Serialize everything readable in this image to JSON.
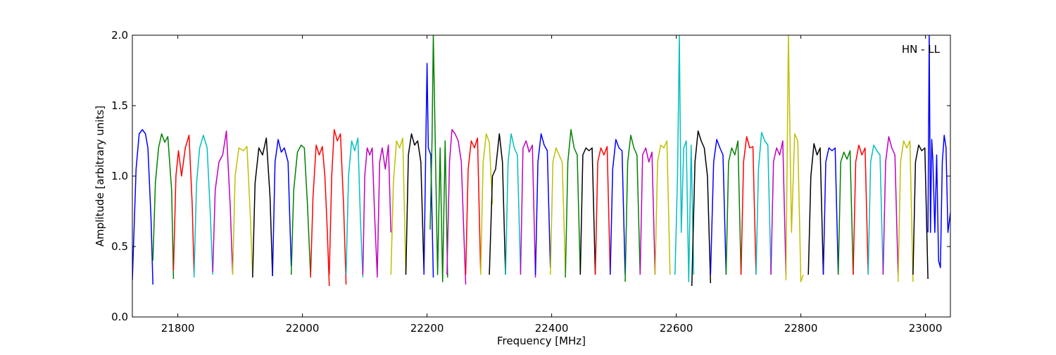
{
  "chart_data": {
    "type": "line",
    "title": "",
    "annotation": "HN - LL",
    "xlabel": "Frequency [MHz]",
    "ylabel": "Amplitude [arbitrary units]",
    "xlim": [
      21727,
      23040
    ],
    "ylim": [
      0.0,
      2.0
    ],
    "xticks": [
      21800,
      22000,
      22200,
      22400,
      22600,
      22800,
      23000
    ],
    "xtick_labels": [
      "21800",
      "22000",
      "22200",
      "22400",
      "22600",
      "22800",
      "23000"
    ],
    "yticks": [
      0.0,
      0.5,
      1.0,
      1.5,
      2.0
    ],
    "ytick_labels": [
      "0.0",
      "0.5",
      "1.0",
      "1.5",
      "2.0"
    ],
    "grid": false,
    "legend": false,
    "colors": [
      "#0000ff",
      "#008000",
      "#ff0000",
      "#00bfbf",
      "#bf00bf",
      "#bfbf00",
      "#000000"
    ],
    "series": [
      {
        "color": "#0000ff",
        "x": [
          21727,
          21733,
          21738,
          21743,
          21748,
          21752,
          21757,
          21760
        ],
        "y": [
          0.26,
          1.05,
          1.3,
          1.33,
          1.3,
          1.2,
          0.7,
          0.23
        ]
      },
      {
        "color": "#008000",
        "x": [
          21760,
          21764,
          21769,
          21774,
          21779,
          21784,
          21790,
          21793
        ],
        "y": [
          0.4,
          0.95,
          1.2,
          1.3,
          1.24,
          1.28,
          0.9,
          0.27
        ]
      },
      {
        "color": "#ff0000",
        "x": [
          21793,
          21797,
          21801,
          21806,
          21812,
          21818,
          21823,
          21826
        ],
        "y": [
          0.33,
          1.0,
          1.18,
          1.0,
          1.2,
          1.29,
          0.8,
          0.31
        ]
      },
      {
        "color": "#00bfbf",
        "x": [
          21826,
          21830,
          21835,
          21841,
          21847,
          21852,
          21856
        ],
        "y": [
          0.28,
          0.95,
          1.2,
          1.29,
          1.2,
          0.75,
          0.3
        ]
      },
      {
        "color": "#bf00bf",
        "x": [
          21856,
          21860,
          21866,
          21872,
          21878,
          21884,
          21888
        ],
        "y": [
          0.32,
          0.9,
          1.1,
          1.15,
          1.32,
          0.8,
          0.31
        ]
      },
      {
        "color": "#bfbf00",
        "x": [
          21888,
          21892,
          21898,
          21905,
          21911,
          21916,
          21920
        ],
        "y": [
          0.3,
          1.0,
          1.2,
          1.18,
          1.21,
          0.75,
          0.3
        ]
      },
      {
        "color": "#000000",
        "x": [
          21920,
          21924,
          21930,
          21936,
          21942,
          21948,
          21952
        ],
        "y": [
          0.28,
          0.95,
          1.2,
          1.15,
          1.27,
          0.85,
          0.29
        ]
      },
      {
        "color": "#0000ff",
        "x": [
          21952,
          21956,
          21961,
          21966,
          21971,
          21977,
          21982
        ],
        "y": [
          0.29,
          1.1,
          1.26,
          1.17,
          1.2,
          1.1,
          0.36
        ]
      },
      {
        "color": "#008000",
        "x": [
          21982,
          21986,
          21992,
          21998,
          22003,
          22008,
          22013
        ],
        "y": [
          0.3,
          0.9,
          1.17,
          1.22,
          1.2,
          0.8,
          0.3
        ]
      },
      {
        "color": "#ff0000",
        "x": [
          22013,
          22017,
          22022,
          22027,
          22032,
          22036,
          22040,
          22043
        ],
        "y": [
          0.28,
          0.85,
          1.22,
          1.15,
          1.21,
          1.0,
          0.6,
          0.22
        ]
      },
      {
        "color": "#ff0000",
        "x": [
          22043,
          22047,
          22051,
          22056,
          22061,
          22066,
          22070
        ],
        "y": [
          0.3,
          1.0,
          1.33,
          1.25,
          1.3,
          0.8,
          0.23
        ]
      },
      {
        "color": "#00bfbf",
        "x": [
          22070,
          22074,
          22079,
          22084,
          22089,
          22093,
          22097
        ],
        "y": [
          0.3,
          1.0,
          1.25,
          1.18,
          1.27,
          0.7,
          0.28
        ]
      },
      {
        "color": "#bf00bf",
        "x": [
          22097,
          22100,
          22104,
          22108,
          22112,
          22116,
          22120
        ],
        "y": [
          0.3,
          1.0,
          1.2,
          1.15,
          1.2,
          0.7,
          0.3
        ]
      },
      {
        "color": "#bf00bf",
        "x": [
          22120,
          22124,
          22128,
          22133,
          22138,
          22142
        ],
        "y": [
          0.28,
          1.1,
          1.2,
          1.05,
          1.22,
          0.6
        ]
      },
      {
        "color": "#bfbf00",
        "x": [
          22142,
          22146,
          22151,
          22156,
          22161,
          22166
        ],
        "y": [
          0.3,
          0.95,
          1.25,
          1.2,
          1.27,
          0.3
        ]
      },
      {
        "color": "#000000",
        "x": [
          22166,
          22170,
          22175,
          22180,
          22185,
          22190,
          22195
        ],
        "y": [
          0.3,
          1.15,
          1.3,
          1.22,
          1.25,
          1.1,
          0.32
        ]
      },
      {
        "color": "#0000ff",
        "x": [
          22195,
          22198,
          22200,
          22202,
          22206,
          22210
        ],
        "y": [
          0.3,
          1.2,
          1.8,
          1.2,
          1.15,
          0.28
        ]
      },
      {
        "color": "#008000",
        "x": [
          22205,
          22208,
          22210,
          22213,
          22217,
          22221,
          22225,
          22229,
          22233
        ],
        "y": [
          0.62,
          1.26,
          2.0,
          1.28,
          0.3,
          1.2,
          0.25,
          1.25,
          0.28
        ]
      },
      {
        "color": "#bf00bf",
        "x": [
          22232,
          22236,
          22240,
          22245,
          22250,
          22255,
          22259,
          22262
        ],
        "y": [
          0.3,
          1.1,
          1.33,
          1.3,
          1.25,
          1.1,
          0.6,
          0.23
        ]
      },
      {
        "color": "#ff0000",
        "x": [
          22262,
          22266,
          22271,
          22276,
          22281,
          22286
        ],
        "y": [
          0.3,
          1.05,
          1.25,
          1.2,
          1.27,
          0.32
        ]
      },
      {
        "color": "#bfbf00",
        "x": [
          22286,
          22290,
          22295,
          22300,
          22305
        ],
        "y": [
          0.3,
          1.1,
          1.3,
          1.24,
          0.8
        ]
      },
      {
        "color": "#000000",
        "x": [
          22300,
          22305,
          22310,
          22316,
          22321,
          22326
        ],
        "y": [
          0.3,
          1.0,
          1.05,
          1.3,
          1.1,
          0.3
        ]
      },
      {
        "color": "#00bfbf",
        "x": [
          22326,
          22330,
          22335,
          22340,
          22345,
          22350
        ],
        "y": [
          0.3,
          1.1,
          1.3,
          1.2,
          1.15,
          0.32
        ]
      },
      {
        "color": "#bf00bf",
        "x": [
          22350,
          22354,
          22359,
          22364,
          22369,
          22374
        ],
        "y": [
          0.3,
          1.2,
          1.25,
          1.17,
          1.22,
          0.28
        ]
      },
      {
        "color": "#0000ff",
        "x": [
          22374,
          22378,
          22383,
          22388,
          22393,
          22398
        ],
        "y": [
          0.3,
          1.1,
          1.3,
          1.22,
          1.18,
          0.35
        ]
      },
      {
        "color": "#bfbf00",
        "x": [
          22398,
          22402,
          22407,
          22412,
          22417,
          22422
        ],
        "y": [
          0.3,
          1.1,
          1.2,
          1.15,
          1.1,
          0.32
        ]
      },
      {
        "color": "#008000",
        "x": [
          22422,
          22426,
          22431,
          22436,
          22441,
          22446
        ],
        "y": [
          0.28,
          1.1,
          1.33,
          1.2,
          1.15,
          0.3
        ]
      },
      {
        "color": "#000000",
        "x": [
          22446,
          22450,
          22455,
          22460,
          22465,
          22470
        ],
        "y": [
          0.3,
          1.15,
          1.2,
          1.18,
          1.2,
          0.3
        ]
      },
      {
        "color": "#ff0000",
        "x": [
          22470,
          22474,
          22479,
          22484,
          22489,
          22494
        ],
        "y": [
          0.3,
          1.1,
          1.2,
          1.15,
          1.21,
          0.3
        ]
      },
      {
        "color": "#0000ff",
        "x": [
          22494,
          22498,
          22503,
          22508,
          22513,
          22518
        ],
        "y": [
          0.3,
          1.05,
          1.26,
          1.2,
          1.18,
          0.3
        ]
      },
      {
        "color": "#008000",
        "x": [
          22518,
          22522,
          22527,
          22532,
          22537,
          22542
        ],
        "y": [
          0.25,
          1.1,
          1.29,
          1.2,
          1.15,
          0.3
        ]
      },
      {
        "color": "#bf00bf",
        "x": [
          22542,
          22546,
          22551,
          22556,
          22561,
          22566
        ],
        "y": [
          0.3,
          1.15,
          1.2,
          1.1,
          1.17,
          0.3
        ]
      },
      {
        "color": "#bfbf00",
        "x": [
          22566,
          22570,
          22575,
          22580,
          22585,
          22590
        ],
        "y": [
          0.3,
          1.1,
          1.22,
          1.2,
          1.25,
          0.3
        ]
      },
      {
        "color": "#00bfbf",
        "x": [
          22598,
          22602,
          22605,
          22608,
          22612,
          22616,
          22620,
          22624,
          22628
        ],
        "y": [
          0.3,
          1.0,
          2.0,
          0.6,
          1.2,
          1.25,
          0.25,
          1.22,
          0.3
        ]
      },
      {
        "color": "#000000",
        "x": [
          22625,
          22630,
          22635,
          22640,
          22645,
          22650,
          22655
        ],
        "y": [
          0.22,
          1.1,
          1.32,
          1.25,
          1.2,
          1.0,
          0.24
        ]
      },
      {
        "color": "#0000ff",
        "x": [
          22655,
          22660,
          22665,
          22670,
          22675,
          22680
        ],
        "y": [
          0.3,
          1.1,
          1.26,
          1.2,
          1.15,
          0.3
        ]
      },
      {
        "color": "#008000",
        "x": [
          22680,
          22684,
          22689,
          22694,
          22699,
          22704
        ],
        "y": [
          0.3,
          1.1,
          1.2,
          1.15,
          1.25,
          0.3
        ]
      },
      {
        "color": "#ff0000",
        "x": [
          22704,
          22708,
          22713,
          22718,
          22723,
          22728
        ],
        "y": [
          0.3,
          1.1,
          1.28,
          1.2,
          1.21,
          0.3
        ]
      },
      {
        "color": "#00bfbf",
        "x": [
          22728,
          22732,
          22737,
          22742,
          22747,
          22752
        ],
        "y": [
          0.3,
          1.05,
          1.31,
          1.25,
          1.22,
          0.3
        ]
      },
      {
        "color": "#bf00bf",
        "x": [
          22752,
          22756,
          22761,
          22766,
          22771,
          22776
        ],
        "y": [
          0.3,
          1.1,
          1.2,
          1.15,
          1.25,
          0.3
        ]
      },
      {
        "color": "#bfbf00",
        "x": [
          22776,
          22780,
          22785,
          22790,
          22795,
          22800,
          22804
        ],
        "y": [
          0.26,
          2.0,
          0.6,
          1.3,
          1.25,
          0.25,
          0.3
        ]
      },
      {
        "color": "#000000",
        "x": [
          22812,
          22816,
          22821,
          22826,
          22831,
          22836
        ],
        "y": [
          0.3,
          1.0,
          1.23,
          1.15,
          1.2,
          0.3
        ]
      },
      {
        "color": "#0000ff",
        "x": [
          22836,
          22840,
          22845,
          22850,
          22855,
          22860
        ],
        "y": [
          0.3,
          1.1,
          1.2,
          1.18,
          1.2,
          0.3
        ]
      },
      {
        "color": "#008000",
        "x": [
          22860,
          22864,
          22869,
          22874,
          22879,
          22884
        ],
        "y": [
          0.3,
          1.1,
          1.17,
          1.12,
          1.18,
          0.3
        ]
      },
      {
        "color": "#ff0000",
        "x": [
          22884,
          22888,
          22893,
          22898,
          22903,
          22908
        ],
        "y": [
          0.3,
          1.1,
          1.22,
          1.15,
          1.2,
          0.3
        ]
      },
      {
        "color": "#00bfbf",
        "x": [
          22908,
          22912,
          22917,
          22922,
          22927,
          22932
        ],
        "y": [
          0.3,
          1.1,
          1.22,
          1.18,
          1.15,
          0.3
        ]
      },
      {
        "color": "#bf00bf",
        "x": [
          22932,
          22936,
          22941,
          22946,
          22951,
          22956
        ],
        "y": [
          0.3,
          1.1,
          1.28,
          1.2,
          1.15,
          0.3
        ]
      },
      {
        "color": "#bfbf00",
        "x": [
          22956,
          22960,
          22965,
          22970,
          22975,
          22980
        ],
        "y": [
          0.25,
          1.1,
          1.25,
          1.2,
          1.25,
          0.25
        ]
      },
      {
        "color": "#000000",
        "x": [
          22980,
          22984,
          22989,
          22994,
          22999,
          23004
        ],
        "y": [
          0.3,
          1.1,
          1.22,
          1.18,
          1.2,
          0.27
        ]
      },
      {
        "color": "#0000ff",
        "x": [
          23004,
          23006,
          23008,
          23010,
          23012,
          23015,
          23018,
          23021,
          23024,
          23027,
          23030,
          23033,
          23036,
          23040
        ],
        "y": [
          0.6,
          2.0,
          0.6,
          1.26,
          1.1,
          0.6,
          1.15,
          0.4,
          0.35,
          1.1,
          1.29,
          1.2,
          0.6,
          0.74
        ]
      }
    ]
  }
}
